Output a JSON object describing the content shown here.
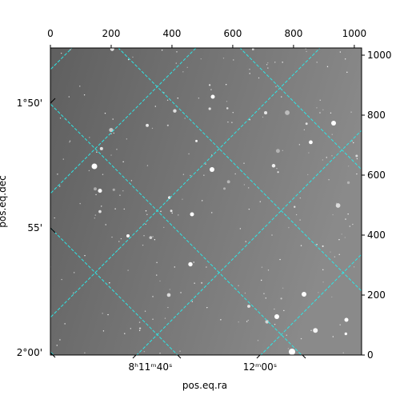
{
  "chart_data": {
    "type": "image",
    "xlabel": "pos.eq.ra",
    "ylabel": "pos.eq.dec",
    "xlim": [
      0,
      1024
    ],
    "xticks": [
      0,
      200,
      400,
      600,
      800,
      1000
    ],
    "ylim": [
      0,
      1024
    ],
    "yticks": [
      0,
      200,
      400,
      600,
      800,
      1000
    ],
    "ra_tick_labels": [
      "8ʰ11ᵐ40ˢ",
      "12ᵐ00ˢ"
    ],
    "dec_tick_labels": [
      "1°50'",
      "55'",
      "2°00'"
    ]
  }
}
